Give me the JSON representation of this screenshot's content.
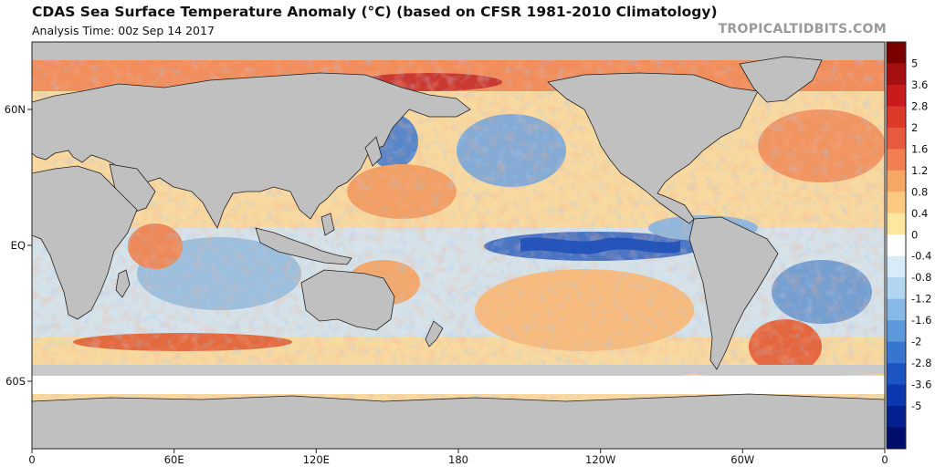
{
  "title": "CDAS Sea Surface Temperature Anomaly (°C) (based on CFSR 1981-2010 Climatology)",
  "subtitle": "Analysis Time: 00z Sep 14 2017",
  "credit": "TROPICALTIDBITS.COM",
  "lat_labels": [
    "60N",
    "EQ",
    "60S"
  ],
  "lon_labels": [
    "0",
    "60E",
    "120E",
    "180",
    "120W",
    "60W",
    "0"
  ],
  "colorbar": {
    "labels": [
      "5",
      "3.6",
      "2.8",
      "2",
      "1.6",
      "1.2",
      "0.8",
      "0.4",
      "0",
      "-0.4",
      "-0.8",
      "-1.2",
      "-1.6",
      "-2",
      "-2.8",
      "-3.6",
      "-5"
    ],
    "colors": [
      "#7a0000",
      "#a50f0f",
      "#c91b1b",
      "#dd3a2a",
      "#e85a3e",
      "#f17f50",
      "#f7a764",
      "#fbc97f",
      "#fde79e",
      "#ffffff",
      "#d7ecf8",
      "#b2d5f0",
      "#86b9e6",
      "#5c98dc",
      "#3776cf",
      "#1c55c2",
      "#0b38ae",
      "#04208f",
      "#000d6b"
    ]
  },
  "land_color": "#c0c0c0",
  "ocean_warm_color": "#f6c987",
  "ocean_cool_color": "#a8ccef"
}
